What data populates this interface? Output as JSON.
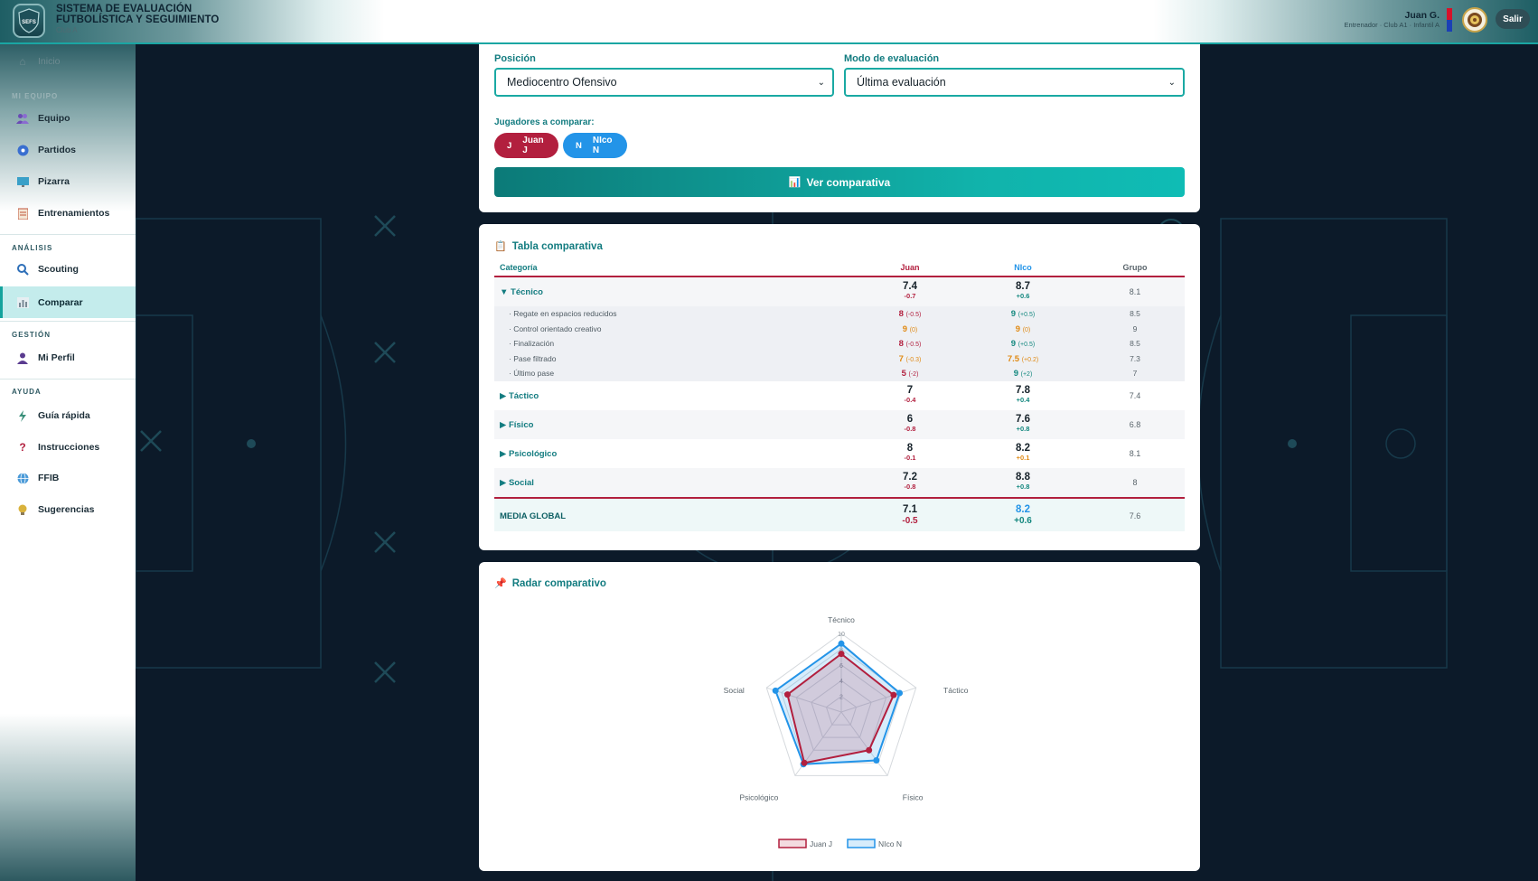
{
  "header": {
    "title_line1": "SISTEMA DE EVALUACIÓN",
    "title_line2": "FUTBOLÍSTICA Y SEGUIMIENTO",
    "club": "Club A",
    "logo_text": "SEFS",
    "user_name": "Juan G.",
    "user_role": "Entrenador · Club A1 · Infantil A",
    "logout": "Salir"
  },
  "sidebar": {
    "items": [
      {
        "label": "Inicio",
        "icon": "home-icon"
      },
      {
        "label": "Equipo",
        "icon": "team-icon"
      },
      {
        "label": "Partidos",
        "icon": "ball-icon"
      },
      {
        "label": "Pizarra",
        "icon": "board-icon"
      },
      {
        "label": "Entrenamientos",
        "icon": "clipboard-icon"
      },
      {
        "label": "Scouting",
        "icon": "search-icon"
      },
      {
        "label": "Comparar",
        "icon": "chart-icon"
      },
      {
        "label": "Mi Perfil",
        "icon": "user-icon"
      },
      {
        "label": "Guía rápida",
        "icon": "bolt-icon"
      },
      {
        "label": "Instrucciones",
        "icon": "question-icon"
      },
      {
        "label": "FFIB",
        "icon": "globe-icon"
      },
      {
        "label": "Sugerencias",
        "icon": "bulb-icon"
      }
    ],
    "sections": {
      "equipo": "MI EQUIPO",
      "analisis": "ANÁLISIS",
      "gestion": "GESTIÓN",
      "ayuda": "AYUDA"
    }
  },
  "filters": {
    "position_label": "Posición",
    "position_value": "Mediocentro Ofensivo",
    "mode_label": "Modo de evaluación",
    "mode_value": "Última evaluación",
    "compare_label": "Jugadores a comparar:",
    "players": [
      {
        "initial": "J",
        "name": "Juan J",
        "color": "#b21f3e"
      },
      {
        "initial": "N",
        "name": "NIco N",
        "color": "#2394e8"
      }
    ],
    "view_button": "Ver comparativa"
  },
  "table": {
    "title": "Tabla comparativa",
    "headers": {
      "category": "Categoría",
      "p1": "Juan",
      "p2": "NIco",
      "group": "Grupo"
    },
    "categories": [
      {
        "name": "Técnico",
        "arrow": "▼",
        "p1": "7.4",
        "p1_delta": "-0.7",
        "p2": "8.7",
        "p2_delta": "+0.6",
        "group": "8.1",
        "subs": [
          {
            "name": "· Regate en espacios reducidos",
            "p1": "8",
            "p1_d": "(-0.5)",
            "p2": "9",
            "p2_d": "(+0.5)",
            "group": "8.5"
          },
          {
            "name": "· Control orientado creativo",
            "p1": "9",
            "p1_d": "(0)",
            "p2": "9",
            "p2_d": "(0)",
            "group": "9"
          },
          {
            "name": "· Finalización",
            "p1": "8",
            "p1_d": "(-0.5)",
            "p2": "9",
            "p2_d": "(+0.5)",
            "group": "8.5"
          },
          {
            "name": "· Pase filtrado",
            "p1": "7",
            "p1_d": "(-0.3)",
            "p2": "7.5",
            "p2_d": "(+0.2)",
            "group": "7.3"
          },
          {
            "name": "· Último pase",
            "p1": "5",
            "p1_d": "(-2)",
            "p2": "9",
            "p2_d": "(+2)",
            "group": "7"
          }
        ]
      },
      {
        "name": "Táctico",
        "arrow": "▶",
        "p1": "7",
        "p1_delta": "-0.4",
        "p2": "7.8",
        "p2_delta": "+0.4",
        "group": "7.4"
      },
      {
        "name": "Físico",
        "arrow": "▶",
        "p1": "6",
        "p1_delta": "-0.8",
        "p2": "7.6",
        "p2_delta": "+0.8",
        "group": "6.8"
      },
      {
        "name": "Psicológico",
        "arrow": "▶",
        "p1": "8",
        "p1_delta": "-0.1",
        "p2": "8.2",
        "p2_delta": "+0.1",
        "group": "8.1"
      },
      {
        "name": "Social",
        "arrow": "▶",
        "p1": "7.2",
        "p1_delta": "-0.8",
        "p2": "8.8",
        "p2_delta": "+0.8",
        "group": "8"
      }
    ],
    "total": {
      "label": "MEDIA GLOBAL",
      "p1": "7.1",
      "p1_delta": "-0.5",
      "p2": "8.2",
      "p2_delta": "+0.6",
      "group": "7.6"
    }
  },
  "radar": {
    "title": "Radar comparativo"
  },
  "chart_data": {
    "type": "radar",
    "axes": [
      "Técnico",
      "Táctico",
      "Físico",
      "Psicológico",
      "Social"
    ],
    "range": [
      0,
      10
    ],
    "ticks": [
      "2",
      "4",
      "6",
      "8",
      "10"
    ],
    "series": [
      {
        "name": "Juan J",
        "values": [
          7.4,
          7.0,
          6.0,
          8.0,
          7.2
        ],
        "color": "#b21f3e"
      },
      {
        "name": "NIco N",
        "values": [
          8.7,
          7.8,
          7.6,
          8.2,
          8.8
        ],
        "color": "#2394e8"
      }
    ]
  }
}
